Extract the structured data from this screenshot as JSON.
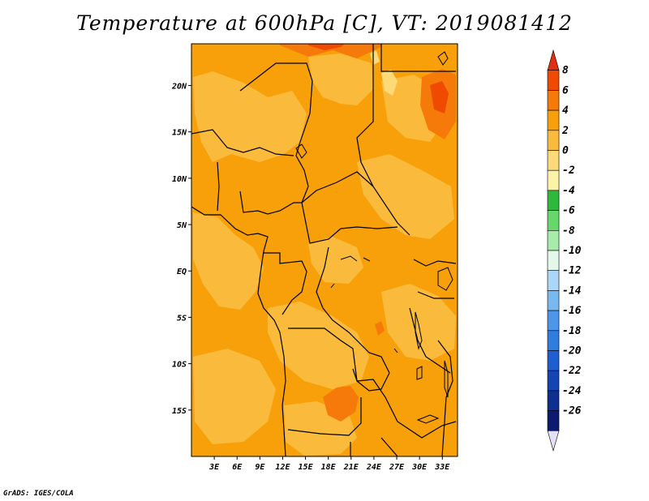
{
  "title": "Temperature at 600hPa [C], VT: 2019081412",
  "credit": "GrADS: IGES/COLA",
  "map": {
    "lon_range": [
      0,
      35
    ],
    "lat_range": [
      -20,
      24.5
    ],
    "x_ticks": [
      {
        "lon": 3,
        "label": "3E"
      },
      {
        "lon": 6,
        "label": "6E"
      },
      {
        "lon": 9,
        "label": "9E"
      },
      {
        "lon": 12,
        "label": "12E"
      },
      {
        "lon": 15,
        "label": "15E"
      },
      {
        "lon": 18,
        "label": "18E"
      },
      {
        "lon": 21,
        "label": "21E"
      },
      {
        "lon": 24,
        "label": "24E"
      },
      {
        "lon": 27,
        "label": "27E"
      },
      {
        "lon": 30,
        "label": "30E"
      },
      {
        "lon": 33,
        "label": "33E"
      }
    ],
    "y_ticks": [
      {
        "lat": 20,
        "label": "20N"
      },
      {
        "lat": 15,
        "label": "15N"
      },
      {
        "lat": 10,
        "label": "10N"
      },
      {
        "lat": 5,
        "label": "5N"
      },
      {
        "lat": 0,
        "label": "EQ"
      },
      {
        "lat": -5,
        "label": "5S"
      },
      {
        "lat": -10,
        "label": "10S"
      },
      {
        "lat": -15,
        "label": "15S"
      }
    ]
  },
  "colorbar": {
    "levels": [
      "8",
      "6",
      "4",
      "2",
      "0",
      "-2",
      "-4",
      "-6",
      "-8",
      "-10",
      "-12",
      "-14",
      "-16",
      "-18",
      "-20",
      "-22",
      "-24",
      "-26"
    ],
    "colors_top_to_bottom": [
      "#e03010",
      "#f04a00",
      "#f57a0a",
      "#f8a00a",
      "#fabb3c",
      "#fdd978",
      "#fdf3a8",
      "#2eb83c",
      "#66d76a",
      "#a6ecaa",
      "#e3f8ea",
      "#aad6f7",
      "#7ab9f0",
      "#4d96e9",
      "#2f7ddd",
      "#1f5ed0",
      "#1545b4",
      "#0c2f90",
      "#0c1b70",
      "#e4e0f5"
    ]
  },
  "field_colors": {
    "base": "#f8a00a",
    "light": "#fabb3c",
    "warm": "#f57a0a",
    "hot": "#f04a00",
    "pale": "#fdd978"
  }
}
